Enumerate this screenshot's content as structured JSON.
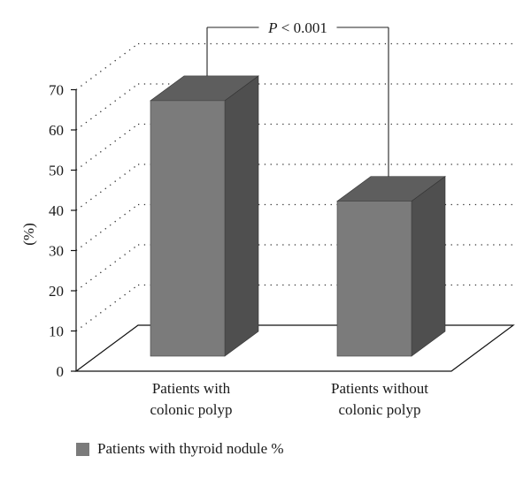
{
  "chart_data": {
    "type": "bar",
    "style": "3d",
    "categories": [
      "Patients with colonic polyp",
      "Patients without colonic polyp"
    ],
    "category_lines": [
      [
        "Patients with",
        "colonic polyp"
      ],
      [
        "Patients without",
        "colonic polyp"
      ]
    ],
    "series": [
      {
        "name": "Patients with thyroid nodule %",
        "values": [
          67.5,
          42.5
        ]
      }
    ],
    "ylabel": "(%)",
    "xlabel": "",
    "ylim": [
      0,
      70
    ],
    "yticks": [
      0,
      10,
      20,
      30,
      40,
      50,
      60,
      70
    ],
    "grid": true,
    "legend_position": "bottom-left",
    "annotation": {
      "label_italic": "P",
      "label_rest": " < 0.001"
    },
    "colors": {
      "bar_front": "#7b7b7b",
      "bar_side": "#4f4f4f",
      "bar_top": "#5e5e5e",
      "grid": "#333333"
    }
  }
}
